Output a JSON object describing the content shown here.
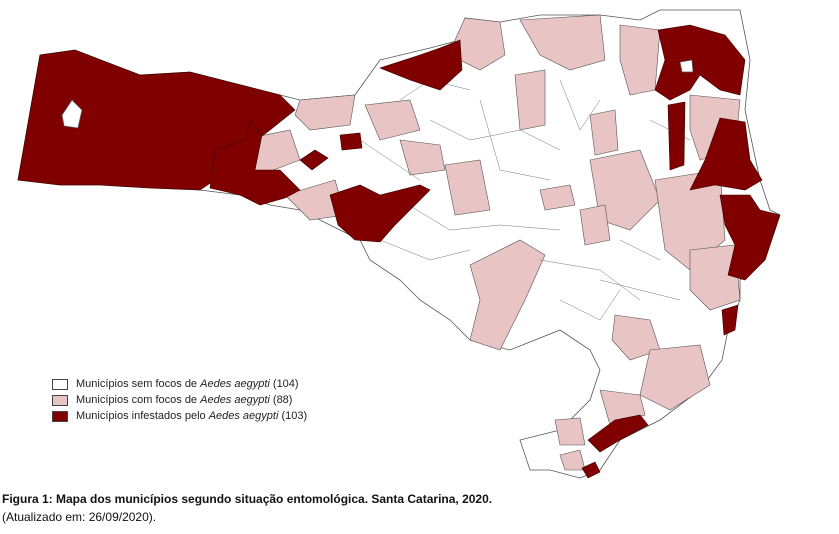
{
  "legend": {
    "items": [
      {
        "prefix": "Municípios sem focos de ",
        "species": "Aedes aegypti",
        "count": "(104)"
      },
      {
        "prefix": "Municípios com focos de ",
        "species": "Aedes aegypti",
        "count": "(88)"
      },
      {
        "prefix": "Municípios infestados pelo ",
        "species": "Aedes aegypti",
        "count": "(103)"
      }
    ]
  },
  "caption": {
    "title": "Figura 1: Mapa dos municípios segundo situação entomológica. Santa Catarina, 2020.",
    "note": "(Atualizado em: 26/09/2020)."
  }
}
